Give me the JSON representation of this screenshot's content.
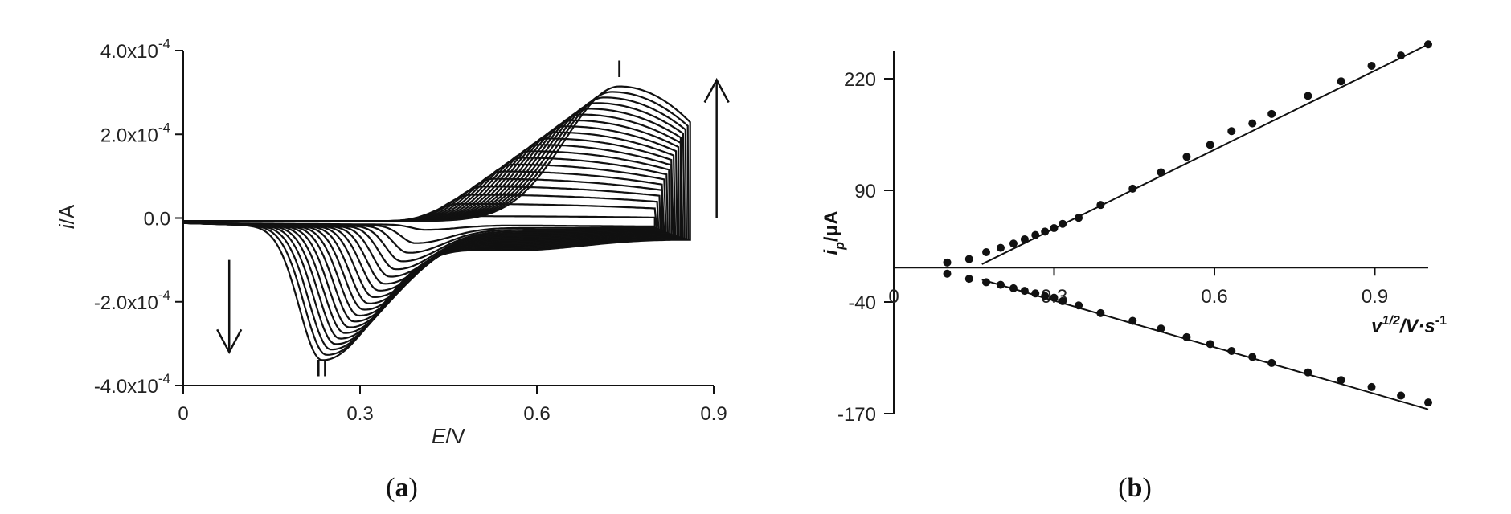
{
  "chart_data": [
    {
      "type": "line",
      "panel_label": "a",
      "xlabel": {
        "italic": "E",
        "rest": "/V"
      },
      "ylabel": {
        "italic": "i",
        "rest": "/A"
      },
      "xlim": [
        0,
        0.9
      ],
      "ylim": [
        -0.0004,
        0.0004
      ],
      "x_ticks": [
        0,
        0.3,
        0.6,
        0.9
      ],
      "x_tick_labels": [
        "0",
        "0.3",
        "0.6",
        "0.9"
      ],
      "y_ticks": [
        0.0004,
        0.0002,
        0,
        -0.0002,
        -0.0004
      ],
      "y_tick_labels": [
        {
          "mant": "4.0x10",
          "exp": "-4"
        },
        {
          "mant": "2.0x10",
          "exp": "-4"
        },
        {
          "mant": "0.0",
          "exp": ""
        },
        {
          "mant": "-2.0x10",
          "exp": "-4"
        },
        {
          "mant": "-4.0x10",
          "exp": "-4"
        }
      ],
      "grid": false,
      "peak_labels": [
        {
          "text": "I",
          "x": 0.74,
          "y": 0.00036
        },
        {
          "text": "II",
          "x": 0.235,
          "y": -0.000355
        }
      ],
      "arrows": [
        {
          "direction": "up",
          "x": 0.905,
          "y_from": 0.0,
          "y_to": 0.00033
        },
        {
          "direction": "down",
          "x": 0.078,
          "y_from": -0.0001,
          "y_to": -0.00032
        }
      ],
      "scan_count": 20,
      "scan_params": {
        "anodic_peak_E": [
          0.44,
          0.74
        ],
        "anodic_peak_i": [
          1.2e-05,
          0.000322
        ],
        "cathodic_peak_E": [
          0.41,
          0.235
        ],
        "cathodic_peak_i": [
          -1.2e-05,
          -0.000315
        ],
        "switch_E": [
          0.8,
          0.86
        ]
      }
    },
    {
      "type": "scatter",
      "panel_label": "b",
      "xlabel": {
        "italic": "v",
        "sup": "1/2",
        "rest": "/V·s",
        "sup2": "-1"
      },
      "ylabel": {
        "italic": "i",
        "sub": "p",
        "rest": "/μA"
      },
      "xlim": [
        0,
        1.0
      ],
      "ylim": [
        -170,
        250
      ],
      "x_ticks": [
        0,
        0.3,
        0.6,
        0.9
      ],
      "x_tick_labels": [
        "0",
        "0.3",
        "0.6",
        "0.9"
      ],
      "y_ticks": [
        220,
        90,
        -40,
        -170
      ],
      "y_tick_labels": [
        "220",
        "90",
        "-40",
        "-170"
      ],
      "grid": false,
      "series": [
        {
          "x": [
            0.1,
            0.141,
            0.173,
            0.2,
            0.224,
            0.245,
            0.265,
            0.283,
            0.3,
            0.316,
            0.346,
            0.387,
            0.447,
            0.5,
            0.548,
            0.592,
            0.632,
            0.671,
            0.707,
            0.775,
            0.837,
            0.894,
            0.949,
            1.0
          ],
          "y": [
            6,
            10,
            18,
            23,
            28,
            33,
            38,
            42,
            46,
            51,
            58,
            73,
            92,
            111,
            129,
            143,
            159,
            168,
            179,
            200,
            217,
            235,
            247,
            260
          ],
          "fit": {
            "x": [
              0.165,
              1.0
            ],
            "y": [
              4,
              260
            ]
          }
        },
        {
          "x": [
            0.1,
            0.141,
            0.173,
            0.2,
            0.224,
            0.245,
            0.265,
            0.283,
            0.3,
            0.316,
            0.346,
            0.387,
            0.447,
            0.5,
            0.548,
            0.592,
            0.632,
            0.671,
            0.707,
            0.775,
            0.837,
            0.894,
            0.949,
            1.0
          ],
          "y": [
            -7,
            -13,
            -17,
            -20,
            -24,
            -27,
            -30,
            -33,
            -35,
            -39,
            -44,
            -53,
            -62,
            -71,
            -81,
            -89,
            -97,
            -104,
            -111,
            -122,
            -131,
            -139,
            -149,
            -157
          ],
          "fit": {
            "x": [
              0.165,
              1.0
            ],
            "y": [
              -14,
              -165
            ]
          }
        }
      ]
    }
  ]
}
